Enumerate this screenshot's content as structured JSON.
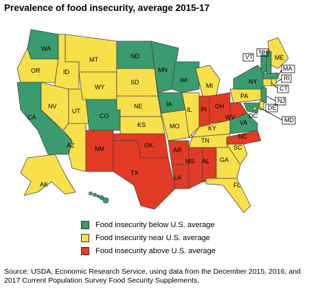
{
  "title": "Prevalence of food insecurity, average 2015-17",
  "colors": {
    "below": "#3a9b6f",
    "near": "#f7e04a",
    "above": "#e23b25",
    "border": "#444444"
  },
  "legend": [
    {
      "category": "below",
      "label": "Food insecurity below U.S. average"
    },
    {
      "category": "near",
      "label": "Food insecurity near U.S. average"
    },
    {
      "category": "above",
      "label": "Food insecurity above U.S. average"
    }
  ],
  "states": [
    {
      "abbr": "WA",
      "category": "below"
    },
    {
      "abbr": "OR",
      "category": "near"
    },
    {
      "abbr": "CA",
      "category": "below"
    },
    {
      "abbr": "ID",
      "category": "near"
    },
    {
      "abbr": "NV",
      "category": "near"
    },
    {
      "abbr": "AZ",
      "category": "near"
    },
    {
      "abbr": "UT",
      "category": "near"
    },
    {
      "abbr": "MT",
      "category": "near"
    },
    {
      "abbr": "WY",
      "category": "near"
    },
    {
      "abbr": "CO",
      "category": "below"
    },
    {
      "abbr": "NM",
      "category": "above"
    },
    {
      "abbr": "ND",
      "category": "below"
    },
    {
      "abbr": "SD",
      "category": "near"
    },
    {
      "abbr": "NE",
      "category": "near"
    },
    {
      "abbr": "KS",
      "category": "near"
    },
    {
      "abbr": "OK",
      "category": "above"
    },
    {
      "abbr": "TX",
      "category": "above"
    },
    {
      "abbr": "MN",
      "category": "below"
    },
    {
      "abbr": "IA",
      "category": "below"
    },
    {
      "abbr": "MO",
      "category": "near"
    },
    {
      "abbr": "AR",
      "category": "above"
    },
    {
      "abbr": "LA",
      "category": "above"
    },
    {
      "abbr": "WI",
      "category": "below"
    },
    {
      "abbr": "IL",
      "category": "near"
    },
    {
      "abbr": "MI",
      "category": "near"
    },
    {
      "abbr": "IN",
      "category": "above"
    },
    {
      "abbr": "OH",
      "category": "above"
    },
    {
      "abbr": "KY",
      "category": "near"
    },
    {
      "abbr": "TN",
      "category": "near"
    },
    {
      "abbr": "MS",
      "category": "above"
    },
    {
      "abbr": "AL",
      "category": "above"
    },
    {
      "abbr": "GA",
      "category": "near"
    },
    {
      "abbr": "FL",
      "category": "near"
    },
    {
      "abbr": "SC",
      "category": "near"
    },
    {
      "abbr": "NC",
      "category": "above"
    },
    {
      "abbr": "VA",
      "category": "below"
    },
    {
      "abbr": "WV",
      "category": "above"
    },
    {
      "abbr": "PA",
      "category": "near"
    },
    {
      "abbr": "NY",
      "category": "below"
    },
    {
      "abbr": "ME",
      "category": "near"
    },
    {
      "abbr": "VT",
      "category": "below"
    },
    {
      "abbr": "NH",
      "category": "below"
    },
    {
      "abbr": "MA",
      "category": "below"
    },
    {
      "abbr": "RI",
      "category": "near"
    },
    {
      "abbr": "CT",
      "category": "near"
    },
    {
      "abbr": "NJ",
      "category": "below"
    },
    {
      "abbr": "DE",
      "category": "near"
    },
    {
      "abbr": "MD",
      "category": "below"
    },
    {
      "abbr": "DC",
      "category": "near"
    },
    {
      "abbr": "AK",
      "category": "near"
    },
    {
      "abbr": "HI",
      "category": "below"
    }
  ],
  "source": "Source: USDA, Economic Research Service, using data from the December 2015, 2016, and 2017 Current Population Survey Food Security Supplements."
}
